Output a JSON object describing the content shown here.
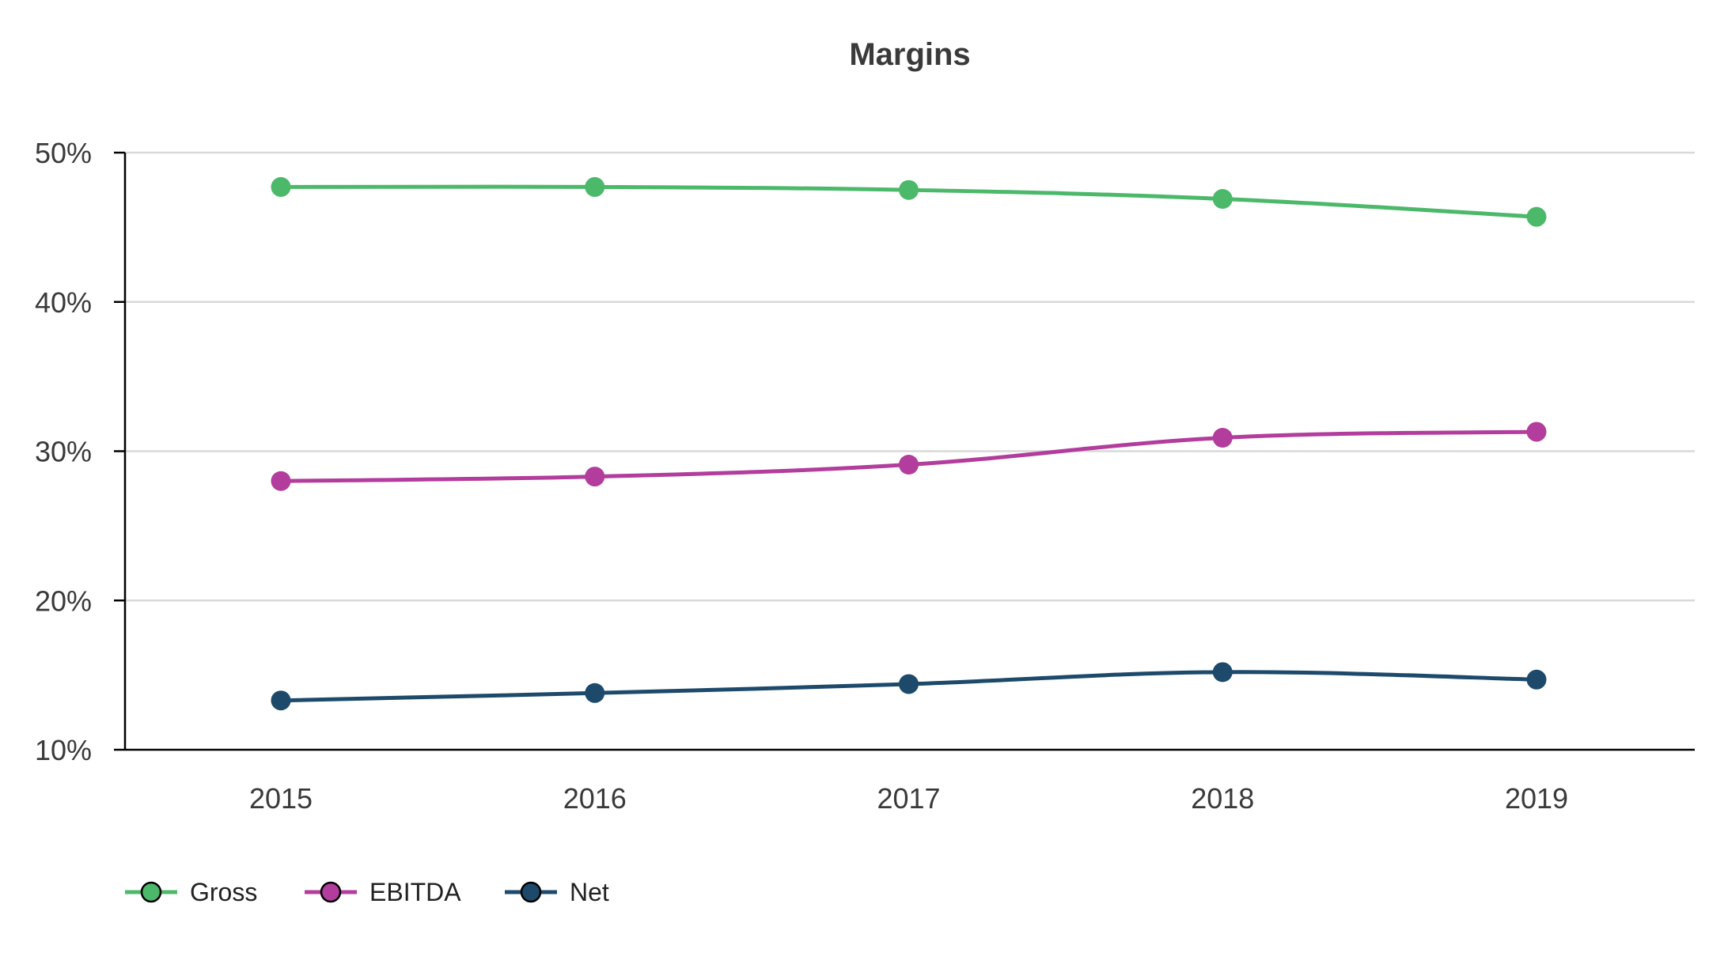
{
  "chart_data": {
    "type": "line",
    "title": "Margins",
    "xlabel": "",
    "ylabel": "",
    "categories": [
      "2015",
      "2016",
      "2017",
      "2018",
      "2019"
    ],
    "ylim": [
      10,
      50
    ],
    "yticks": [
      10,
      20,
      30,
      40,
      50
    ],
    "ytick_labels": [
      "10%",
      "20%",
      "30%",
      "40%",
      "50%"
    ],
    "grid": true,
    "legend_position": "bottom-left",
    "series": [
      {
        "name": "Gross",
        "color": "#4cb86a",
        "values": [
          47.7,
          47.7,
          47.5,
          46.9,
          45.7
        ]
      },
      {
        "name": "EBITDA",
        "color": "#b23d9c",
        "values": [
          28.0,
          28.3,
          29.1,
          30.9,
          31.3
        ]
      },
      {
        "name": "Net",
        "color": "#1d4a6b",
        "values": [
          13.3,
          13.8,
          14.4,
          15.2,
          14.7
        ]
      }
    ]
  }
}
